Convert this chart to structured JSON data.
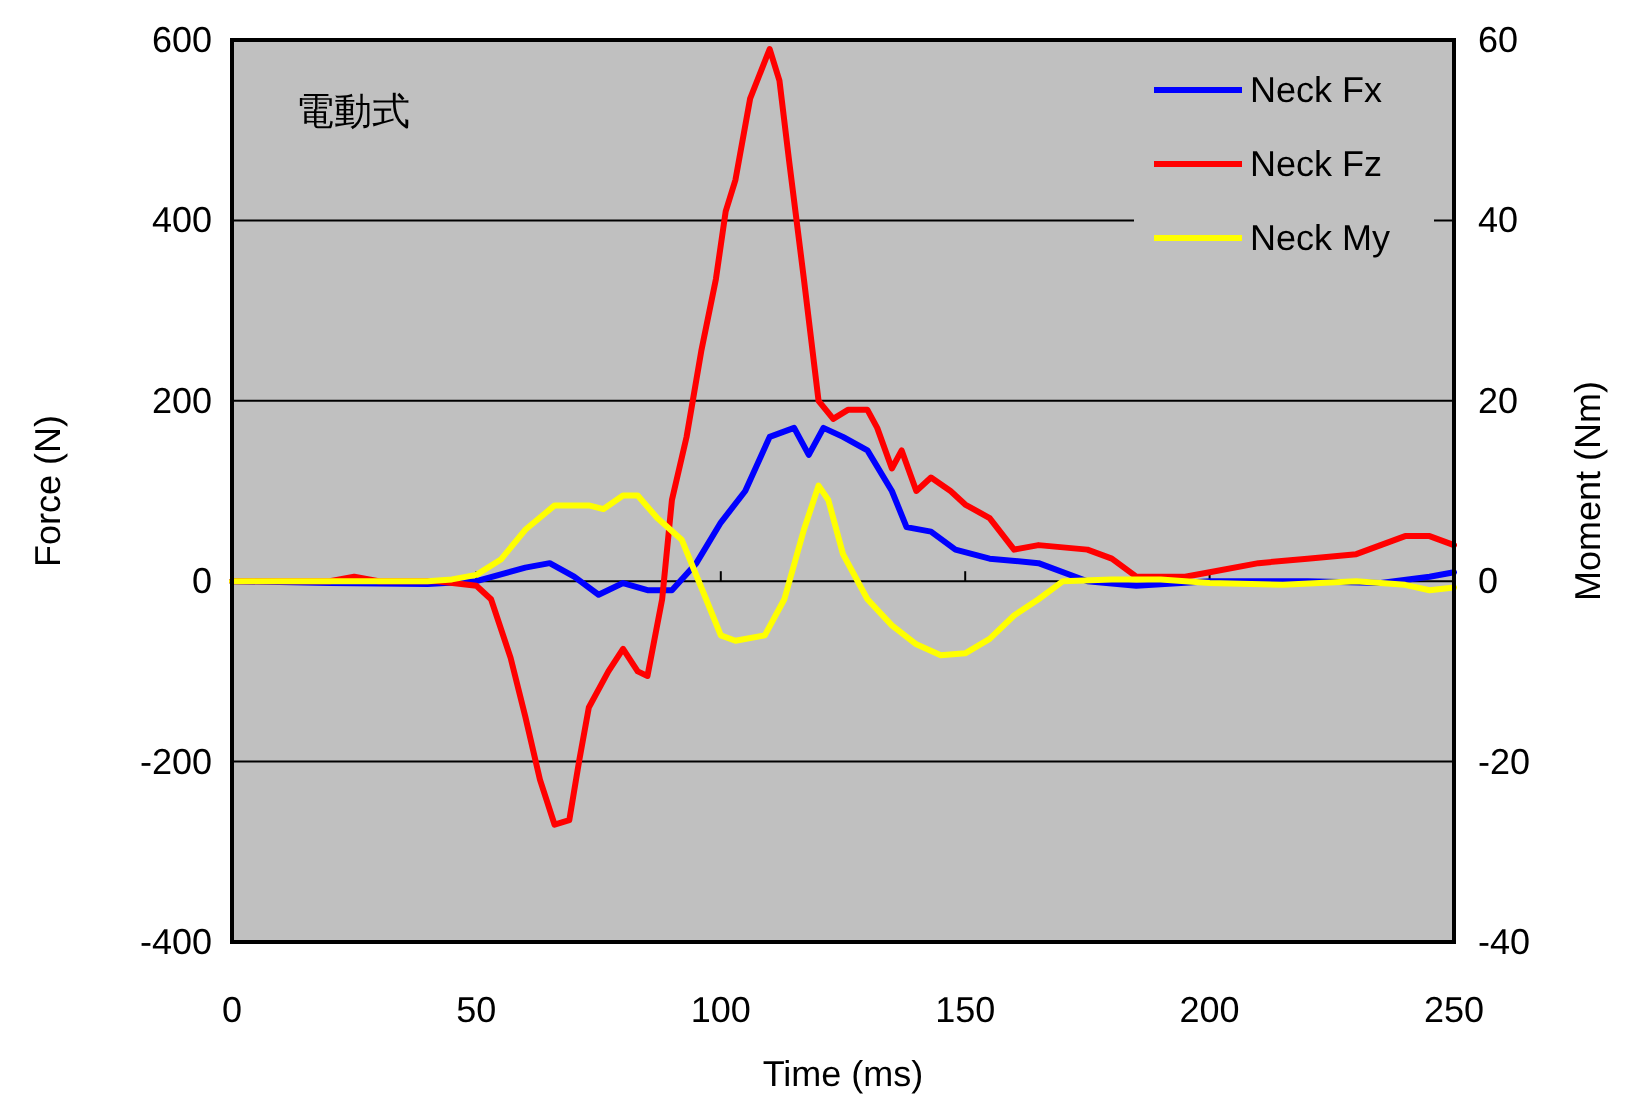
{
  "chart_data": {
    "type": "line",
    "xlabel": "Time (ms)",
    "ylabel": "Force (N)",
    "y2label": "Moment (Nm)",
    "annotations": [
      "電動式"
    ],
    "xlim": [
      0,
      250
    ],
    "xticks": [
      0,
      50,
      100,
      150,
      200,
      250
    ],
    "ylim": [
      -400,
      600
    ],
    "yticks": [
      -400,
      -200,
      0,
      200,
      400,
      600
    ],
    "y2lim": [
      -40,
      60
    ],
    "y2ticks": [
      -40,
      -20,
      0,
      20,
      40,
      60
    ],
    "grid": "y",
    "legend": "top right",
    "line_style": "solid",
    "series": [
      {
        "name": "Neck Fx",
        "color": "#0000ff",
        "x": [
          0,
          20,
          40,
          50,
          60,
          65,
          70,
          75,
          80,
          85,
          90,
          95,
          100,
          105,
          110,
          115,
          118,
          121,
          125,
          130,
          135,
          138,
          143,
          148,
          155,
          165,
          175,
          185,
          200,
          220,
          235,
          245,
          250
        ],
        "values": [
          0,
          -2,
          -3,
          0,
          15,
          20,
          5,
          -15,
          -2,
          -10,
          -10,
          20,
          65,
          100,
          160,
          170,
          140,
          170,
          160,
          145,
          100,
          60,
          55,
          35,
          25,
          20,
          0,
          -5,
          0,
          0,
          -2,
          5,
          10
        ]
      },
      {
        "name": "Neck Fz",
        "color": "#ff0000",
        "x": [
          0,
          20,
          25,
          30,
          42,
          50,
          53,
          57,
          60,
          63,
          66,
          69,
          71,
          73,
          77,
          80,
          83,
          85,
          88,
          90,
          93,
          96,
          99,
          101,
          103,
          106,
          110,
          112,
          114,
          117,
          120,
          123,
          126,
          130,
          132,
          135,
          137,
          140,
          143,
          147,
          150,
          155,
          160,
          165,
          175,
          180,
          185,
          195,
          200,
          210,
          220,
          230,
          240,
          245,
          250
        ],
        "values": [
          0,
          0,
          5,
          0,
          0,
          -5,
          -20,
          -85,
          -150,
          -220,
          -270,
          -265,
          -200,
          -140,
          -100,
          -75,
          -100,
          -105,
          -20,
          90,
          160,
          255,
          335,
          410,
          445,
          535,
          590,
          555,
          465,
          335,
          200,
          180,
          190,
          190,
          170,
          125,
          145,
          100,
          115,
          100,
          85,
          70,
          35,
          40,
          35,
          25,
          5,
          5,
          10,
          20,
          25,
          30,
          50,
          50,
          40
        ]
      },
      {
        "name": "Neck My",
        "color": "#ffff00",
        "axis": "y2",
        "x": [
          0,
          40,
          45,
          50,
          55,
          60,
          66,
          73,
          76,
          80,
          83,
          87,
          92,
          97,
          100,
          103,
          109,
          113,
          117,
          120,
          122,
          125,
          130,
          135,
          140,
          145,
          150,
          155,
          160,
          165,
          170,
          180,
          190,
          200,
          215,
          230,
          240,
          245,
          250
        ],
        "values": [
          0,
          0,
          0.2,
          0.7,
          2.4,
          5.7,
          8.4,
          8.4,
          8,
          9.5,
          9.5,
          7,
          4.6,
          -2,
          -6,
          -6.6,
          -6,
          -2,
          5.7,
          10.6,
          9,
          3,
          -2,
          -4.9,
          -7,
          -8.2,
          -8,
          -6.4,
          -3.8,
          -2,
          0,
          0.2,
          0.2,
          -0.2,
          -0.4,
          0,
          -0.4,
          -1,
          -0.7
        ]
      }
    ]
  }
}
